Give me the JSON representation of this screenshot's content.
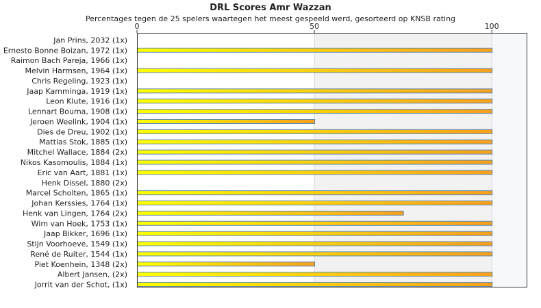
{
  "chart_data": {
    "type": "bar",
    "orientation": "horizontal",
    "title": "DRL Scores Amr Wazzan",
    "subtitle": "Percentages tegen de 25 spelers waartegen het meest gespeeld werd, gesorteerd op KNSB rating",
    "xlim": [
      0,
      110
    ],
    "xticks": [
      0,
      50,
      100
    ],
    "grid": "vertical bands",
    "colors": {
      "bar_start": "#ffff00",
      "bar_end": "#f5a020",
      "bar_border": "#5b86b0",
      "band": "#f2f2f2",
      "axis": "#333333"
    },
    "categories": [
      "Jan Prins, 2032 (1x)",
      "Ernesto Bonne Boizan, 1972 (1x)",
      "Raimon Bach Pareja, 1966 (1x)",
      "Melvin Harmsen, 1964 (1x)",
      "Chris Regeling, 1923 (1x)",
      "Jaap Kamminga, 1919 (1x)",
      "Leon Klute, 1916 (1x)",
      "Lennart Bouma, 1908 (1x)",
      "Jeroen Weelink, 1904 (1x)",
      "Dies de Dreu, 1902 (1x)",
      "Mattias Stok, 1885 (1x)",
      "Mitchel Wallace, 1884 (2x)",
      "Nikos Kasomoulis, 1884 (1x)",
      "Eric van Aart, 1881 (1x)",
      "Henk Dissel, 1880 (2x)",
      "Marcel Scholten, 1865 (1x)",
      "Johan Kerssies, 1764 (1x)",
      "Henk van Lingen, 1764 (2x)",
      "Wim van Hoek, 1753 (1x)",
      "Jaap Bikker, 1696 (1x)",
      "Stijn Voorhoeve, 1549 (1x)",
      "René de Ruiter, 1544 (1x)",
      "Piet Koenhein, 1348 (2x)",
      "Albert Jansen,  (2x)",
      "Jorrit van der Schot,  (1x)"
    ],
    "values": [
      0,
      100,
      0,
      100,
      0,
      100,
      100,
      100,
      50,
      100,
      100,
      100,
      100,
      100,
      0,
      100,
      100,
      75,
      100,
      100,
      100,
      100,
      50,
      100,
      100
    ]
  }
}
